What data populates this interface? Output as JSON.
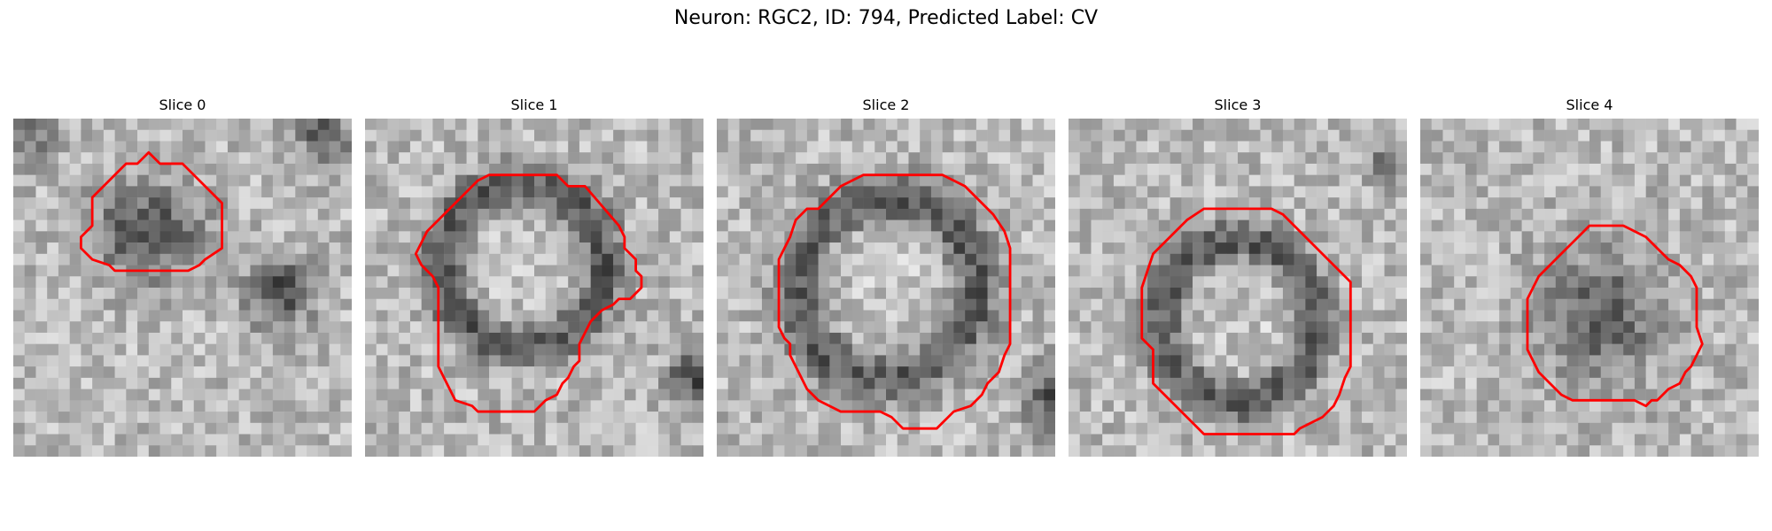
{
  "figure": {
    "title": "Neuron: RGC2, ID: 794, Predicted Label: CV",
    "contour_color": "#ff0000",
    "grid_size": 30,
    "panels": [
      {
        "title": "Slice 0",
        "seed": 11,
        "blobs": [
          {
            "cx": 12.0,
            "cy": 10.0,
            "rx": 6.2,
            "ry": 5.2,
            "ring": false,
            "strength": 105
          },
          {
            "cx": 23.5,
            "cy": 15.5,
            "rx": 3.6,
            "ry": 3.8,
            "ring": false,
            "strength": 110
          },
          {
            "cx": 1.5,
            "cy": 1.5,
            "rx": 2.4,
            "ry": 2.6,
            "ring": false,
            "strength": 85
          },
          {
            "cx": 27.5,
            "cy": 1.5,
            "rx": 3.0,
            "ry": 3.2,
            "ring": false,
            "strength": 90
          }
        ],
        "contour": [
          [
            12.0,
            3.0
          ],
          [
            13.0,
            4.0
          ],
          [
            15.0,
            4.0
          ],
          [
            18.5,
            7.5
          ],
          [
            18.5,
            11.5
          ],
          [
            17.0,
            12.5
          ],
          [
            16.5,
            13.0
          ],
          [
            15.5,
            13.5
          ],
          [
            9.0,
            13.5
          ],
          [
            8.5,
            13.0
          ],
          [
            7.0,
            12.5
          ],
          [
            6.0,
            11.5
          ],
          [
            6.0,
            10.5
          ],
          [
            6.5,
            10.0
          ],
          [
            7.0,
            9.5
          ],
          [
            7.0,
            7.0
          ],
          [
            9.5,
            4.5
          ],
          [
            10.0,
            4.0
          ],
          [
            11.0,
            4.0
          ]
        ]
      },
      {
        "title": "Slice 1",
        "seed": 23,
        "blobs": [
          {
            "cx": 14.0,
            "cy": 13.0,
            "rx": 9.0,
            "ry": 9.0,
            "ring": true,
            "strength": 95
          },
          {
            "cx": 29.0,
            "cy": 23.0,
            "rx": 2.5,
            "ry": 3.5,
            "ring": false,
            "strength": 110
          }
        ],
        "contour": [
          [
            12.0,
            5.0
          ],
          [
            17.0,
            5.0
          ],
          [
            18.0,
            6.0
          ],
          [
            19.5,
            6.0
          ],
          [
            22.5,
            9.5
          ],
          [
            23.0,
            10.5
          ],
          [
            23.0,
            11.5
          ],
          [
            24.0,
            12.5
          ],
          [
            24.0,
            13.5
          ],
          [
            24.5,
            14.0
          ],
          [
            24.5,
            15.0
          ],
          [
            23.5,
            16.0
          ],
          [
            22.5,
            16.0
          ],
          [
            22.0,
            16.5
          ],
          [
            21.0,
            17.0
          ],
          [
            20.0,
            18.0
          ],
          [
            19.0,
            20.0
          ],
          [
            19.0,
            21.5
          ],
          [
            18.5,
            22.0
          ],
          [
            18.0,
            23.0
          ],
          [
            17.5,
            23.5
          ],
          [
            17.0,
            24.5
          ],
          [
            16.0,
            25.0
          ],
          [
            15.5,
            25.5
          ],
          [
            15.0,
            26.0
          ],
          [
            13.5,
            26.0
          ],
          [
            10.0,
            26.0
          ],
          [
            9.5,
            25.5
          ],
          [
            8.0,
            25.0
          ],
          [
            7.5,
            24.0
          ],
          [
            7.0,
            23.0
          ],
          [
            6.5,
            22.0
          ],
          [
            6.5,
            15.0
          ],
          [
            6.0,
            14.0
          ],
          [
            5.0,
            13.0
          ],
          [
            4.5,
            12.0
          ],
          [
            5.0,
            11.0
          ],
          [
            5.5,
            10.0
          ],
          [
            6.5,
            9.0
          ],
          [
            8.0,
            7.5
          ],
          [
            10.0,
            5.5
          ],
          [
            11.0,
            5.0
          ]
        ]
      },
      {
        "title": "Slice 2",
        "seed": 37,
        "blobs": [
          {
            "cx": 15.0,
            "cy": 15.0,
            "rx": 10.0,
            "ry": 10.0,
            "ring": true,
            "strength": 95
          },
          {
            "cx": 29.5,
            "cy": 25.0,
            "rx": 2.5,
            "ry": 4.0,
            "ring": false,
            "strength": 110
          }
        ],
        "contour": [
          [
            13.0,
            5.0
          ],
          [
            20.0,
            5.0
          ],
          [
            21.0,
            5.5
          ],
          [
            22.0,
            6.0
          ],
          [
            23.0,
            7.0
          ],
          [
            24.5,
            8.5
          ],
          [
            25.5,
            10.0
          ],
          [
            26.0,
            11.5
          ],
          [
            26.0,
            20.0
          ],
          [
            25.5,
            21.0
          ],
          [
            25.0,
            22.5
          ],
          [
            24.0,
            23.5
          ],
          [
            23.5,
            24.5
          ],
          [
            22.5,
            25.5
          ],
          [
            21.0,
            26.0
          ],
          [
            20.5,
            26.5
          ],
          [
            20.0,
            27.0
          ],
          [
            19.5,
            27.5
          ],
          [
            16.5,
            27.5
          ],
          [
            15.5,
            26.5
          ],
          [
            14.5,
            26.0
          ],
          [
            11.0,
            26.0
          ],
          [
            10.0,
            25.5
          ],
          [
            9.0,
            25.0
          ],
          [
            8.0,
            24.0
          ],
          [
            7.5,
            23.0
          ],
          [
            7.0,
            22.0
          ],
          [
            6.5,
            21.0
          ],
          [
            6.5,
            20.0
          ],
          [
            6.0,
            19.5
          ],
          [
            5.5,
            18.5
          ],
          [
            5.5,
            12.5
          ],
          [
            6.0,
            11.5
          ],
          [
            6.5,
            10.5
          ],
          [
            7.0,
            9.0
          ],
          [
            8.0,
            8.0
          ],
          [
            9.0,
            8.0
          ],
          [
            11.0,
            6.0
          ],
          [
            12.0,
            5.5
          ]
        ]
      },
      {
        "title": "Slice 3",
        "seed": 53,
        "blobs": [
          {
            "cx": 15.0,
            "cy": 18.0,
            "rx": 8.5,
            "ry": 9.0,
            "ring": true,
            "strength": 95
          },
          {
            "cx": 28.0,
            "cy": 4.5,
            "rx": 2.0,
            "ry": 2.0,
            "ring": false,
            "strength": 90
          }
        ],
        "contour": [
          [
            13.0,
            8.0
          ],
          [
            18.0,
            8.0
          ],
          [
            19.0,
            8.5
          ],
          [
            25.0,
            14.5
          ],
          [
            25.0,
            22.0
          ],
          [
            24.5,
            23.0
          ],
          [
            24.0,
            24.5
          ],
          [
            23.5,
            25.5
          ],
          [
            23.0,
            26.0
          ],
          [
            22.5,
            26.5
          ],
          [
            21.5,
            27.0
          ],
          [
            20.5,
            27.5
          ],
          [
            20.0,
            28.0
          ],
          [
            12.0,
            28.0
          ],
          [
            11.5,
            27.5
          ],
          [
            7.5,
            23.5
          ],
          [
            7.5,
            20.5
          ],
          [
            6.5,
            19.5
          ],
          [
            6.5,
            15.0
          ],
          [
            7.5,
            12.0
          ],
          [
            10.5,
            9.0
          ],
          [
            12.0,
            8.0
          ]
        ]
      },
      {
        "title": "Slice 4",
        "seed": 71,
        "blobs": [
          {
            "cx": 16.0,
            "cy": 17.5,
            "rx": 7.0,
            "ry": 7.0,
            "ring": false,
            "strength": 90
          }
        ],
        "contour": [
          [
            15.0,
            9.5
          ],
          [
            18.0,
            9.5
          ],
          [
            19.0,
            10.0
          ],
          [
            20.0,
            10.5
          ],
          [
            22.0,
            12.5
          ],
          [
            23.0,
            13.0
          ],
          [
            24.0,
            14.0
          ],
          [
            24.5,
            15.0
          ],
          [
            24.5,
            18.5
          ],
          [
            25.0,
            20.0
          ],
          [
            24.5,
            21.0
          ],
          [
            24.0,
            22.0
          ],
          [
            23.5,
            22.5
          ],
          [
            23.0,
            23.5
          ],
          [
            22.0,
            24.0
          ],
          [
            21.0,
            25.0
          ],
          [
            20.5,
            25.0
          ],
          [
            20.0,
            25.5
          ],
          [
            19.0,
            25.0
          ],
          [
            13.5,
            25.0
          ],
          [
            12.5,
            24.5
          ],
          [
            11.5,
            23.5
          ],
          [
            10.5,
            22.5
          ],
          [
            10.0,
            21.5
          ],
          [
            9.5,
            20.5
          ],
          [
            9.5,
            16.0
          ],
          [
            10.0,
            15.0
          ],
          [
            10.5,
            14.0
          ],
          [
            11.5,
            13.0
          ],
          [
            12.5,
            12.0
          ],
          [
            13.5,
            11.0
          ],
          [
            14.5,
            10.0
          ]
        ]
      }
    ]
  }
}
